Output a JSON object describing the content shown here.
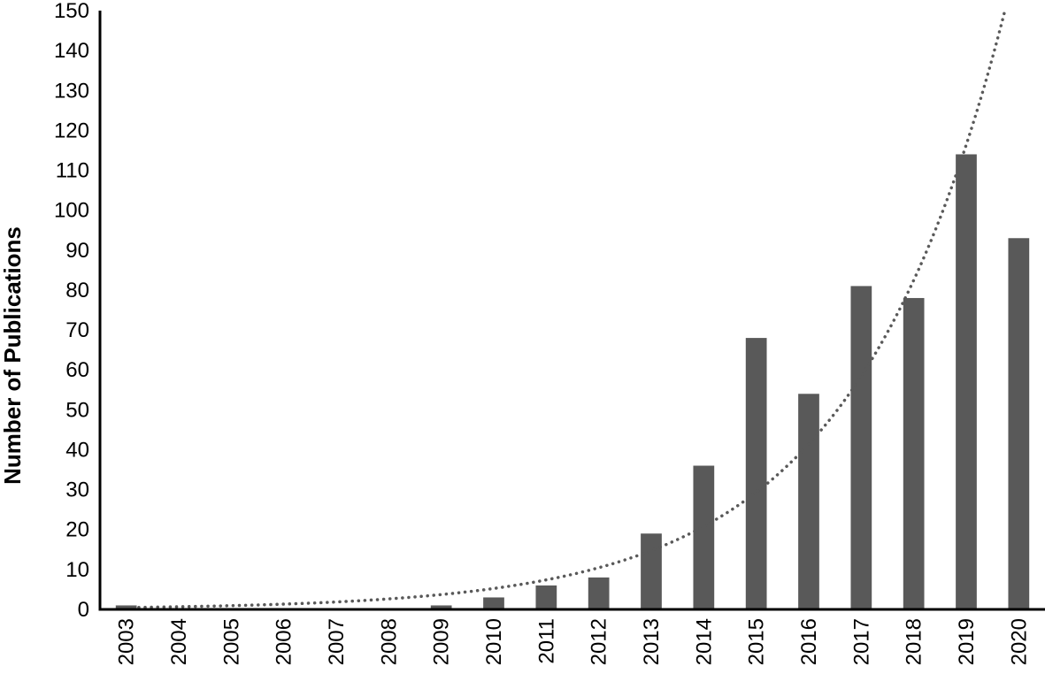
{
  "chart_data": {
    "type": "bar",
    "title": "",
    "xlabel": "",
    "ylabel": "Number of Publications",
    "ylim": [
      0,
      150
    ],
    "yticks": [
      0,
      10,
      20,
      30,
      40,
      50,
      60,
      70,
      80,
      90,
      100,
      110,
      120,
      130,
      140,
      150
    ],
    "grid": false,
    "legend": "none",
    "categories": [
      "2003",
      "2004",
      "2005",
      "2006",
      "2007",
      "2008",
      "2009",
      "2010",
      "2011",
      "2012",
      "2013",
      "2014",
      "2015",
      "2016",
      "2017",
      "2018",
      "2019",
      "2020"
    ],
    "values": [
      1,
      0,
      0,
      0,
      0,
      0,
      1,
      3,
      6,
      8,
      19,
      36,
      68,
      54,
      81,
      78,
      114,
      93
    ],
    "bar_color": "#595959",
    "trendline": {
      "type": "exponential",
      "style": "dotted",
      "color": "#595959"
    }
  }
}
